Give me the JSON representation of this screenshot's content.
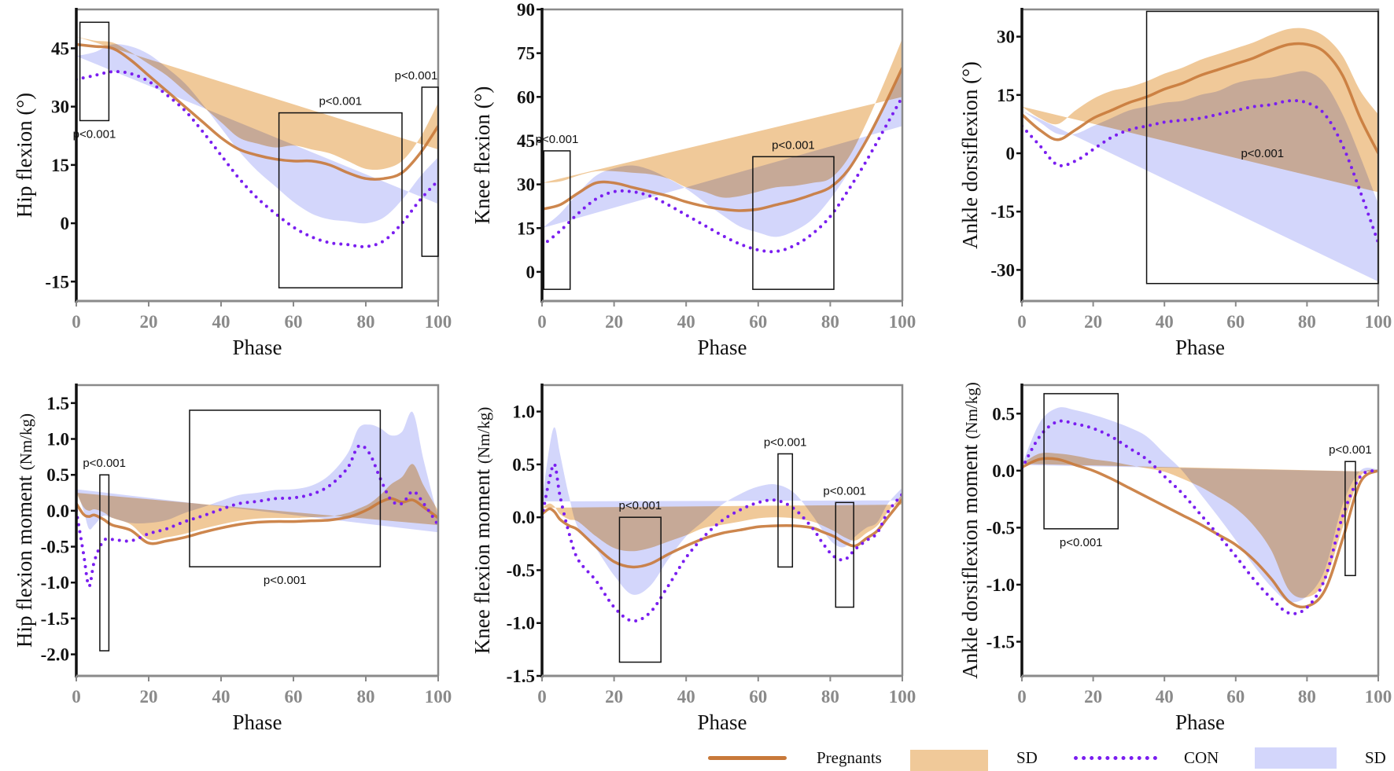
{
  "colors": {
    "pregnants_line": "#c8793a",
    "pregnants_sd": "#f0c999",
    "con_line": "#7a1ef0",
    "con_sd": "#d3d6fb",
    "axis": "#111111",
    "frame": "#8a8a8a"
  },
  "legend": {
    "items": [
      {
        "label": "Pregnants",
        "kind": "solid-line"
      },
      {
        "label": "SD",
        "kind": "orange-band"
      },
      {
        "label": "CON",
        "kind": "dotted-line"
      },
      {
        "label": "SD",
        "kind": "blue-band"
      }
    ]
  },
  "chart_data": [
    {
      "type": "line",
      "title": "",
      "xlabel": "Phase",
      "ylabel": "Hip flexion (°)",
      "ylabel_unit": "",
      "xlim": [
        0,
        100
      ],
      "ylim": [
        -20,
        55
      ],
      "grid": false,
      "xticks": [
        "0",
        "20",
        "40",
        "60",
        "80",
        "100"
      ],
      "yticks": [
        "-15",
        "0",
        "15",
        "30",
        "45"
      ],
      "x": [
        0,
        5,
        10,
        15,
        20,
        25,
        30,
        35,
        40,
        45,
        50,
        55,
        60,
        65,
        70,
        75,
        80,
        85,
        90,
        95,
        100
      ],
      "series": [
        {
          "name": "Pregnants",
          "mean": [
            46,
            45.5,
            45,
            42,
            38,
            34,
            30,
            26,
            22,
            19,
            17.5,
            16.5,
            16,
            16,
            15,
            13,
            11.5,
            11.5,
            13,
            18,
            25
          ],
          "sd": [
            2,
            1.5,
            1.5,
            2,
            3,
            4,
            4,
            4,
            4,
            3,
            3,
            3,
            4,
            3,
            3,
            3,
            2.5,
            2.5,
            3,
            4,
            6
          ]
        },
        {
          "name": "CON",
          "mean": [
            37,
            38,
            39,
            38.5,
            36.5,
            33,
            29,
            23.5,
            17.5,
            11.5,
            6.5,
            2.5,
            -1,
            -3.5,
            -5,
            -5.5,
            -6,
            -4.5,
            0,
            6,
            11
          ],
          "sd": [
            6,
            6,
            7,
            7,
            7,
            7,
            7,
            7,
            7,
            7,
            7,
            7,
            6.5,
            6,
            6,
            6,
            6,
            6,
            6,
            6,
            6
          ]
        }
      ],
      "annotations": [
        {
          "text": "p<0.001",
          "x": [
            1,
            9
          ],
          "y": [
            26.4,
            51.7
          ],
          "label_pos": "below"
        },
        {
          "text": "p<0.001",
          "x": [
            56,
            90
          ],
          "y": [
            -16.6,
            28.4
          ],
          "label_pos": "above"
        },
        {
          "text": "p<0.001",
          "x": [
            95.5,
            100
          ],
          "y": [
            -8.5,
            35
          ],
          "label_pos": "above"
        }
      ]
    },
    {
      "type": "line",
      "title": "",
      "xlabel": "Phase",
      "ylabel": "Knee flexion (°)",
      "ylabel_unit": "",
      "xlim": [
        0,
        100
      ],
      "ylim": [
        -10,
        90
      ],
      "grid": false,
      "xticks": [
        "0",
        "20",
        "40",
        "60",
        "80",
        "100"
      ],
      "yticks": [
        "0",
        "15",
        "30",
        "45",
        "60",
        "75",
        "90"
      ],
      "x": [
        0,
        5,
        10,
        15,
        20,
        25,
        30,
        35,
        40,
        45,
        50,
        55,
        60,
        65,
        70,
        75,
        80,
        85,
        90,
        95,
        100
      ],
      "series": [
        {
          "name": "Pregnants",
          "mean": [
            21.5,
            23,
            27,
            30.5,
            30.5,
            29,
            27.5,
            26,
            24,
            22.5,
            21.5,
            21,
            21.5,
            23,
            24.5,
            26.5,
            29,
            35,
            45,
            57,
            70
          ],
          "sd": [
            9,
            8,
            6,
            4,
            4,
            5,
            6,
            6,
            5,
            5,
            4,
            5,
            6,
            6,
            5,
            4,
            3,
            4,
            6,
            8,
            10
          ]
        },
        {
          "name": "CON",
          "mean": [
            9,
            14,
            20,
            25,
            27.5,
            27.5,
            26,
            23,
            19.5,
            16,
            12.5,
            9.5,
            7.5,
            7,
            9,
            13,
            19,
            28,
            38,
            49,
            60
          ],
          "sd": [
            6,
            6,
            7,
            8,
            8,
            9,
            9,
            9,
            9,
            8,
            7,
            6,
            6,
            5,
            5,
            5,
            6,
            6,
            7,
            8,
            10
          ]
        }
      ],
      "annotations": [
        {
          "text": "p<0.001",
          "x": [
            0.5,
            7.8
          ],
          "y": [
            -6,
            41.5
          ],
          "label_pos": "above"
        },
        {
          "text": "p<0.001",
          "x": [
            58.5,
            81
          ],
          "y": [
            -6,
            39.5
          ],
          "label_pos": "above"
        }
      ]
    },
    {
      "type": "line",
      "title": "",
      "xlabel": "Phase",
      "ylabel": "Ankle dorsiflexion (°)",
      "ylabel_unit": "",
      "xlim": [
        0,
        100
      ],
      "ylim": [
        -38,
        37
      ],
      "grid": false,
      "xticks": [
        "0",
        "20",
        "40",
        "60",
        "80",
        "100"
      ],
      "yticks": [
        "-30",
        "-15",
        "0",
        "15",
        "30"
      ],
      "x": [
        0,
        5,
        10,
        15,
        20,
        25,
        30,
        35,
        40,
        45,
        50,
        55,
        60,
        65,
        70,
        75,
        80,
        85,
        90,
        95,
        100
      ],
      "series": [
        {
          "name": "Pregnants",
          "mean": [
            10,
            6,
            3.5,
            6,
            9,
            11,
            13,
            14.5,
            16.5,
            18,
            20,
            21.5,
            23,
            24.5,
            26.5,
            28,
            28,
            26,
            20,
            9,
            0
          ],
          "sd": [
            2,
            3,
            4,
            5,
            5,
            5,
            4,
            4,
            4,
            4,
            4,
            4,
            4,
            4,
            4,
            4,
            4,
            4,
            5,
            7,
            10
          ]
        },
        {
          "name": "CON",
          "mean": [
            7,
            2,
            -3,
            -2,
            1,
            4,
            6,
            7,
            8,
            8.5,
            9,
            10,
            11,
            12,
            12.5,
            13.5,
            13,
            10,
            2,
            -10,
            -23
          ],
          "sd": [
            4,
            6,
            8,
            7,
            6,
            5,
            5,
            5,
            5,
            5,
            6,
            6,
            7,
            7,
            7,
            7,
            8,
            8,
            8,
            9,
            10
          ]
        }
      ],
      "annotations": [
        {
          "text": "p<0.001",
          "x": [
            35,
            100
          ],
          "y": [
            -33.5,
            36.5
          ],
          "label_pos": "inside",
          "label_y": -1
        }
      ]
    },
    {
      "type": "line",
      "title": "",
      "xlabel": "Phase",
      "ylabel": "Hip flexion moment ",
      "ylabel_unit": "(Nm/kg)",
      "xlim": [
        0,
        100
      ],
      "ylim": [
        -2.3,
        1.75
      ],
      "grid": false,
      "xticks": [
        "0",
        "20",
        "40",
        "60",
        "80",
        "100"
      ],
      "yticks": [
        "-2.0",
        "-1.5",
        "-1.0",
        "-0.5",
        "0.0",
        "0.5",
        "1.0",
        "1.5"
      ],
      "x": [
        0,
        2,
        3.5,
        5,
        7.5,
        10,
        15,
        20,
        25,
        30,
        35,
        40,
        45,
        50,
        55,
        60,
        65,
        70,
        75,
        78,
        81,
        84,
        87,
        90,
        93,
        96,
        100
      ],
      "series": [
        {
          "name": "Pregnants",
          "mean": [
            0.1,
            -0.05,
            -0.08,
            -0.06,
            -0.12,
            -0.2,
            -0.27,
            -0.45,
            -0.42,
            -0.37,
            -0.3,
            -0.24,
            -0.19,
            -0.16,
            -0.15,
            -0.15,
            -0.14,
            -0.13,
            -0.09,
            -0.04,
            0.03,
            0.12,
            0.17,
            0.12,
            0.15,
            0.05,
            -0.1
          ],
          "sd": [
            0.15,
            0.1,
            0.08,
            0.08,
            0.1,
            0.1,
            0.08,
            0.05,
            0.05,
            0.05,
            0.05,
            0.05,
            0.05,
            0.05,
            0.05,
            0.05,
            0.05,
            0.05,
            0.06,
            0.07,
            0.07,
            0.1,
            0.2,
            0.35,
            0.5,
            0.3,
            0.1
          ]
        },
        {
          "name": "CON",
          "mean": [
            0,
            -0.6,
            -1.05,
            -0.7,
            -0.42,
            -0.4,
            -0.42,
            -0.32,
            -0.25,
            -0.15,
            -0.07,
            0.02,
            0.1,
            0.13,
            0.17,
            0.18,
            0.23,
            0.35,
            0.6,
            0.9,
            0.8,
            0.45,
            0.15,
            0.1,
            0.27,
            0.1,
            -0.2
          ],
          "sd": [
            0.3,
            0.6,
            0.8,
            0.5,
            0.35,
            0.3,
            0.25,
            0.15,
            0.12,
            0.12,
            0.12,
            0.12,
            0.12,
            0.12,
            0.12,
            0.12,
            0.12,
            0.15,
            0.2,
            0.25,
            0.4,
            0.7,
            0.9,
            1.0,
            1.1,
            0.6,
            0.1
          ]
        }
      ],
      "annotations": [
        {
          "text": "p<0.001",
          "x": [
            6.5,
            9
          ],
          "y": [
            -1.95,
            0.5
          ],
          "label_pos": "above"
        },
        {
          "text": "p<0.001",
          "x": [
            31.3,
            84
          ],
          "y": [
            -0.78,
            1.4
          ],
          "label_pos": "below"
        }
      ]
    },
    {
      "type": "line",
      "title": "",
      "xlabel": "Phase",
      "ylabel": "Knee flexion moment ",
      "ylabel_unit": "(Nm/kg)",
      "xlim": [
        0,
        100
      ],
      "ylim": [
        -1.5,
        1.25
      ],
      "grid": false,
      "xticks": [
        "0",
        "20",
        "40",
        "60",
        "80",
        "100"
      ],
      "yticks": [
        "-1.5",
        "-1.0",
        "-0.5",
        "0.0",
        "0.5",
        "1.0"
      ],
      "x": [
        0,
        2,
        3.5,
        5,
        7.5,
        10,
        15,
        20,
        25,
        30,
        35,
        40,
        45,
        50,
        55,
        60,
        65,
        70,
        75,
        78,
        81,
        84,
        87,
        90,
        93,
        96,
        100
      ],
      "series": [
        {
          "name": "Pregnants",
          "mean": [
            0.03,
            0.08,
            0.05,
            -0.02,
            -0.08,
            -0.12,
            -0.28,
            -0.42,
            -0.47,
            -0.44,
            -0.35,
            -0.27,
            -0.2,
            -0.15,
            -0.12,
            -0.09,
            -0.08,
            -0.08,
            -0.1,
            -0.14,
            -0.18,
            -0.24,
            -0.27,
            -0.2,
            -0.13,
            0.0,
            0.17
          ],
          "sd": [
            0.06,
            0.05,
            0.05,
            0.05,
            0.06,
            0.08,
            0.1,
            0.13,
            0.15,
            0.15,
            0.12,
            0.1,
            0.1,
            0.08,
            0.08,
            0.08,
            0.08,
            0.07,
            0.06,
            0.06,
            0.05,
            0.05,
            0.05,
            0.05,
            0.05,
            0.05,
            0.05
          ]
        },
        {
          "name": "CON",
          "mean": [
            0,
            0.35,
            0.5,
            0.2,
            -0.15,
            -0.4,
            -0.6,
            -0.85,
            -0.98,
            -0.9,
            -0.65,
            -0.38,
            -0.18,
            -0.03,
            0.07,
            0.14,
            0.16,
            0.08,
            -0.1,
            -0.25,
            -0.37,
            -0.4,
            -0.3,
            -0.22,
            -0.15,
            0.05,
            0.22
          ],
          "sd": [
            0.15,
            0.3,
            0.35,
            0.4,
            0.35,
            0.3,
            0.3,
            0.3,
            0.25,
            0.25,
            0.25,
            0.2,
            0.15,
            0.15,
            0.15,
            0.15,
            0.15,
            0.15,
            0.12,
            0.12,
            0.12,
            0.12,
            0.12,
            0.12,
            0.1,
            0.08,
            0.06
          ]
        }
      ],
      "annotations": [
        {
          "text": "p<0.001",
          "x": [
            21.5,
            33
          ],
          "y": [
            -1.37,
            0
          ],
          "label_pos": "above"
        },
        {
          "text": "p<0.001",
          "x": [
            65.5,
            69.5
          ],
          "y": [
            -0.47,
            0.6
          ],
          "label_pos": "above"
        },
        {
          "text": "p<0.001",
          "x": [
            81.5,
            86.5
          ],
          "y": [
            -0.85,
            0.14
          ],
          "label_pos": "above"
        }
      ]
    },
    {
      "type": "line",
      "title": "",
      "xlabel": "Phase",
      "ylabel": "Ankle dorsiflexion moment ",
      "ylabel_unit": "(Nm/kg)",
      "xlim": [
        0,
        100
      ],
      "ylim": [
        -1.8,
        0.75
      ],
      "grid": false,
      "xticks": [
        "0",
        "20",
        "40",
        "60",
        "80",
        "100"
      ],
      "yticks": [
        "-1.5",
        "-1.0",
        "-0.5",
        "0.0",
        "0.5"
      ],
      "x": [
        0,
        5,
        10,
        15,
        20,
        25,
        30,
        35,
        40,
        45,
        50,
        55,
        60,
        65,
        70,
        75,
        80,
        85,
        90,
        95,
        100
      ],
      "series": [
        {
          "name": "Pregnants",
          "mean": [
            0.03,
            0.1,
            0.1,
            0.05,
            0,
            -0.07,
            -0.15,
            -0.23,
            -0.31,
            -0.39,
            -0.47,
            -0.56,
            -0.65,
            -0.78,
            -0.95,
            -1.15,
            -1.19,
            -1.05,
            -0.6,
            -0.1,
            0
          ],
          "sd": [
            0.03,
            0.05,
            0.05,
            0.08,
            0.1,
            0.15,
            0.2,
            0.25,
            0.3,
            0.32,
            0.33,
            0.33,
            0.32,
            0.3,
            0.25,
            0.1,
            0.08,
            0.08,
            0.1,
            0.05,
            0.01
          ]
        },
        {
          "name": "CON",
          "mean": [
            0.02,
            0.3,
            0.43,
            0.41,
            0.37,
            0.3,
            0.2,
            0.1,
            -0.05,
            -0.2,
            -0.38,
            -0.56,
            -0.75,
            -0.95,
            -1.12,
            -1.25,
            -1.2,
            -0.95,
            -0.4,
            -0.05,
            0
          ],
          "sd": [
            0.03,
            0.12,
            0.12,
            0.12,
            0.12,
            0.14,
            0.18,
            0.2,
            0.2,
            0.2,
            0.18,
            0.16,
            0.14,
            0.12,
            0.1,
            0.1,
            0.1,
            0.08,
            0.1,
            0.05,
            0.01
          ]
        }
      ],
      "annotations": [
        {
          "text": "p<0.001",
          "x": [
            6.2,
            27
          ],
          "y": [
            -0.51,
            0.675
          ],
          "label_pos": "below"
        },
        {
          "text": "p<0.001",
          "x": [
            90.7,
            93.6
          ],
          "y": [
            -0.92,
            0.08
          ],
          "label_pos": "above"
        }
      ]
    }
  ]
}
